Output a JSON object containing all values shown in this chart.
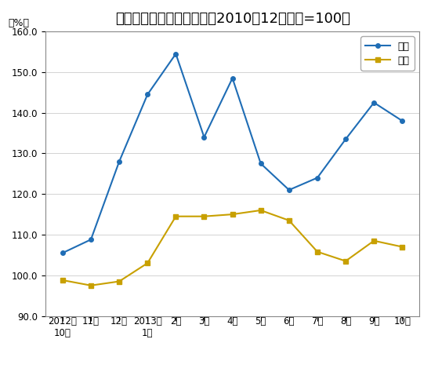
{
  "title": "鲜菜、鲜果价格变动情况（2010年12月价格=100）",
  "ylabel": "（%）",
  "x_labels_line1": [
    "2012年",
    "11月",
    "12月",
    "2013年",
    "2月",
    "3月",
    "4月",
    "5月",
    "6月",
    "7月",
    "8月",
    "9月",
    "10月"
  ],
  "x_labels_line2": [
    "10月",
    "",
    "",
    "1月",
    "",
    "",
    "",
    "",
    "",
    "",
    "",
    "",
    ""
  ],
  "xian_cai": [
    105.5,
    108.8,
    128.0,
    144.5,
    154.5,
    134.0,
    148.5,
    127.5,
    121.0,
    124.0,
    133.5,
    142.5,
    138.0
  ],
  "xian_guo": [
    98.8,
    97.5,
    98.5,
    103.0,
    114.5,
    114.5,
    115.0,
    116.0,
    113.5,
    105.8,
    103.5,
    108.5,
    107.0
  ],
  "line_color_cai": "#1F6DB5",
  "line_color_guo": "#C8A000",
  "marker_cai": "o",
  "marker_guo": "s",
  "ylim": [
    90.0,
    160.0
  ],
  "yticks": [
    90.0,
    100.0,
    110.0,
    120.0,
    130.0,
    140.0,
    150.0,
    160.0
  ],
  "legend_cai": "鲜菜",
  "legend_guo": "鲜果",
  "bg_color": "#FFFFFF",
  "plot_bg_color": "#FFFFFF",
  "border_color": "#888888",
  "title_fontsize": 13,
  "label_fontsize": 9,
  "tick_fontsize": 8.5
}
